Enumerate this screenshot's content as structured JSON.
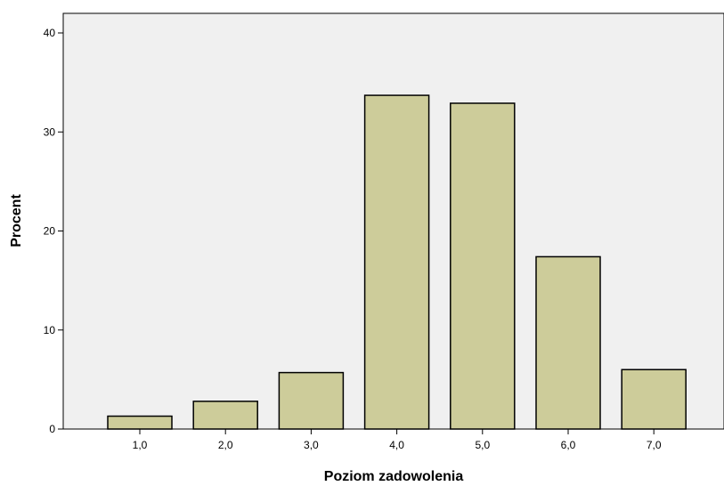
{
  "chart_data": {
    "type": "bar",
    "categories": [
      "1,0",
      "2,0",
      "3,0",
      "4,0",
      "5,0",
      "6,0",
      "7,0"
    ],
    "values": [
      1.3,
      2.8,
      5.7,
      33.7,
      32.9,
      17.4,
      6.0
    ],
    "xlabel": "Poziom zadowolenia",
    "ylabel": "Procent",
    "ylim": [
      0,
      40
    ],
    "yticks": [
      "0",
      "10",
      "20",
      "30",
      "40"
    ],
    "grid": false,
    "legend": "none",
    "colors": {
      "plot_background": "#f0f0f0",
      "bar_fill": "#cdcc9a",
      "bar_stroke": "#000000",
      "axis": "#000000"
    }
  }
}
